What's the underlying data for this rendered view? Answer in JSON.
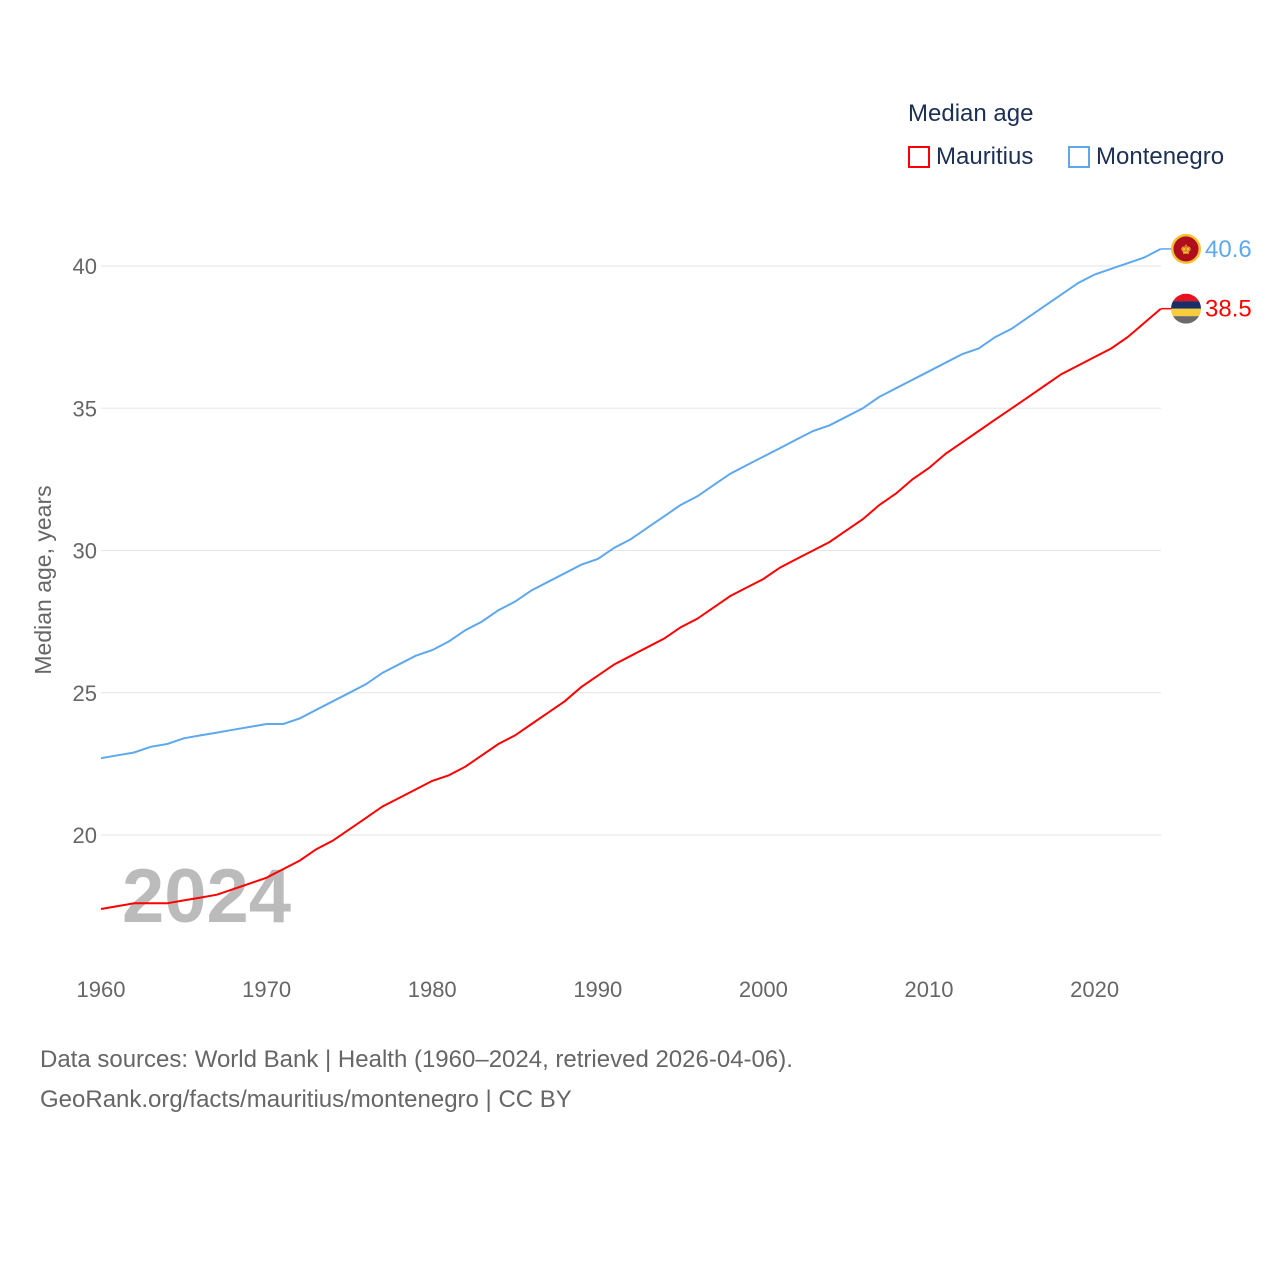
{
  "chart_data": {
    "type": "line",
    "title": "Median age",
    "ylabel": "Median age, years",
    "xlabel": "",
    "ylim": [
      15.5,
      41.5
    ],
    "xlim": [
      1960,
      2024
    ],
    "yticks": [
      20,
      25,
      30,
      35,
      40
    ],
    "xticks": [
      1960,
      1970,
      1980,
      1990,
      2000,
      2010,
      2020
    ],
    "grid": true,
    "legend_position": "top-right",
    "year_label": "2024",
    "x_start": 1960,
    "series": [
      {
        "name": "Mauritius",
        "color": "#ff0000",
        "end_label": "38.5",
        "values": [
          17.4,
          17.5,
          17.6,
          17.6,
          17.6,
          17.7,
          17.8,
          17.9,
          18.1,
          18.3,
          18.5,
          18.8,
          19.1,
          19.5,
          19.8,
          20.2,
          20.6,
          21.0,
          21.3,
          21.6,
          21.9,
          22.1,
          22.4,
          22.8,
          23.2,
          23.5,
          23.9,
          24.3,
          24.7,
          25.2,
          25.6,
          26.0,
          26.3,
          26.6,
          26.9,
          27.3,
          27.6,
          28.0,
          28.4,
          28.7,
          29.0,
          29.4,
          29.7,
          30.0,
          30.3,
          30.7,
          31.1,
          31.6,
          32.0,
          32.5,
          32.9,
          33.4,
          33.8,
          34.2,
          34.6,
          35.0,
          35.4,
          35.8,
          36.2,
          36.5,
          36.8,
          37.1,
          37.5,
          38.0,
          38.5
        ]
      },
      {
        "name": "Montenegro",
        "color": "#5ea8ee",
        "end_label": "40.6",
        "values": [
          22.7,
          22.8,
          22.9,
          23.1,
          23.2,
          23.4,
          23.5,
          23.6,
          23.7,
          23.8,
          23.9,
          23.9,
          24.1,
          24.4,
          24.7,
          25.0,
          25.3,
          25.7,
          26.0,
          26.3,
          26.5,
          26.8,
          27.2,
          27.5,
          27.9,
          28.2,
          28.6,
          28.9,
          29.2,
          29.5,
          29.7,
          30.1,
          30.4,
          30.8,
          31.2,
          31.6,
          31.9,
          32.3,
          32.7,
          33.0,
          33.3,
          33.6,
          33.9,
          34.2,
          34.4,
          34.7,
          35.0,
          35.4,
          35.7,
          36.0,
          36.3,
          36.6,
          36.9,
          37.1,
          37.5,
          37.8,
          38.2,
          38.6,
          39.0,
          39.4,
          39.7,
          39.9,
          40.1,
          40.3,
          40.6
        ]
      }
    ]
  },
  "footer": {
    "source": "Data sources: World Bank | Health (1960–2024, retrieved 2026-04-06).",
    "url": "GeoRank.org/facts/mauritius/montenegro | CC BY"
  }
}
